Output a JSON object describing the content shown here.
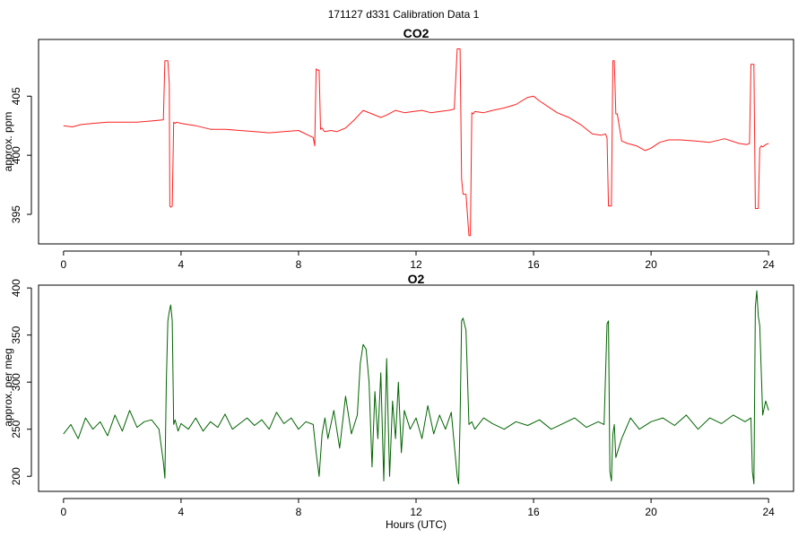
{
  "figure": {
    "title": "171127  d331   Calibration Data 1",
    "xlabel": "Hours (UTC)"
  },
  "colors": {
    "co2": "#ff2020",
    "o2": "#006400",
    "axis": "#000000"
  },
  "chart_data": [
    {
      "type": "line",
      "title": "CO2",
      "xlabel": "",
      "ylabel": "approx. ppm",
      "xlim": [
        -0.85,
        24.85
      ],
      "ylim": [
        392.5,
        409.8
      ],
      "xticks": [
        0,
        4,
        8,
        12,
        16,
        20,
        24
      ],
      "yticks": [
        395,
        400,
        405
      ],
      "grid": false,
      "series": [
        {
          "color": "#ff2020",
          "x": [
            0.0,
            0.3,
            0.6,
            1.0,
            1.5,
            2.0,
            2.5,
            3.0,
            3.4,
            3.45,
            3.5,
            3.55,
            3.6,
            3.62,
            3.65,
            3.7,
            3.75,
            3.8,
            3.85,
            4.0,
            4.5,
            5.0,
            5.5,
            6.0,
            6.5,
            7.0,
            7.5,
            8.0,
            8.5,
            8.55,
            8.6,
            8.65,
            8.7,
            8.75,
            8.8,
            8.85,
            8.9,
            9.1,
            9.3,
            9.6,
            9.9,
            10.2,
            10.5,
            10.8,
            11.0,
            11.3,
            11.6,
            11.9,
            12.2,
            12.5,
            12.8,
            13.1,
            13.3,
            13.4,
            13.45,
            13.5,
            13.55,
            13.6,
            13.65,
            13.7,
            13.8,
            13.85,
            13.9,
            13.95,
            14.0,
            14.3,
            14.6,
            15.0,
            15.4,
            15.8,
            16.0,
            16.2,
            16.5,
            16.8,
            17.2,
            17.6,
            18.0,
            18.3,
            18.45,
            18.5,
            18.55,
            18.6,
            18.65,
            18.7,
            18.75,
            18.8,
            18.85,
            19.0,
            19.2,
            19.5,
            19.8,
            20.0,
            20.3,
            20.6,
            21.0,
            21.5,
            22.0,
            22.5,
            23.0,
            23.25,
            23.35,
            23.4,
            23.45,
            23.5,
            23.55,
            23.6,
            23.65,
            23.7,
            23.75,
            23.8,
            23.9,
            24.0
          ],
          "y": [
            402.5,
            402.4,
            402.6,
            402.7,
            402.8,
            402.8,
            402.8,
            402.9,
            403.0,
            408.0,
            408.0,
            408.0,
            406.0,
            395.7,
            395.6,
            395.7,
            402.8,
            402.7,
            402.8,
            402.7,
            402.5,
            402.2,
            402.2,
            402.1,
            402.0,
            401.9,
            402.0,
            402.1,
            401.5,
            400.8,
            407.3,
            407.2,
            407.2,
            402.2,
            402.3,
            402.1,
            402.0,
            402.1,
            402.0,
            402.3,
            403.0,
            403.8,
            403.5,
            403.2,
            403.4,
            403.8,
            403.6,
            403.7,
            403.8,
            403.6,
            403.7,
            403.8,
            403.9,
            409.0,
            409.0,
            409.0,
            398.0,
            396.7,
            396.7,
            396.7,
            393.2,
            393.2,
            403.6,
            403.5,
            403.7,
            403.6,
            403.8,
            404.0,
            404.3,
            404.9,
            405.0,
            404.6,
            404.1,
            403.6,
            403.2,
            402.6,
            401.8,
            401.7,
            401.8,
            401.5,
            395.7,
            395.7,
            395.7,
            408.0,
            408.0,
            403.5,
            403.5,
            401.2,
            401.0,
            400.8,
            400.4,
            400.6,
            401.1,
            401.3,
            401.3,
            401.2,
            401.1,
            401.4,
            401.0,
            400.9,
            401.0,
            407.7,
            407.7,
            407.7,
            395.5,
            395.5,
            395.5,
            400.6,
            400.8,
            400.7,
            400.9,
            401.0
          ]
        }
      ]
    },
    {
      "type": "line",
      "title": "O2",
      "xlabel": "Hours (UTC)",
      "ylabel": "approx. per meg",
      "xlim": [
        -0.85,
        24.85
      ],
      "ylim": [
        184,
        403
      ],
      "xticks": [
        0,
        4,
        8,
        12,
        16,
        20,
        24
      ],
      "yticks": [
        200,
        250,
        300,
        350,
        400
      ],
      "grid": false,
      "series": [
        {
          "color": "#006400",
          "x": [
            0.0,
            0.25,
            0.5,
            0.75,
            1.0,
            1.25,
            1.5,
            1.75,
            2.0,
            2.25,
            2.5,
            2.75,
            3.0,
            3.25,
            3.4,
            3.45,
            3.5,
            3.55,
            3.6,
            3.65,
            3.7,
            3.75,
            3.8,
            3.9,
            4.0,
            4.25,
            4.5,
            4.75,
            5.0,
            5.25,
            5.5,
            5.75,
            6.0,
            6.25,
            6.5,
            6.75,
            7.0,
            7.25,
            7.5,
            7.75,
            8.0,
            8.25,
            8.5,
            8.6,
            8.7,
            8.8,
            8.9,
            9.0,
            9.2,
            9.4,
            9.6,
            9.8,
            10.0,
            10.1,
            10.2,
            10.3,
            10.4,
            10.5,
            10.6,
            10.7,
            10.8,
            10.9,
            11.0,
            11.1,
            11.2,
            11.3,
            11.4,
            11.5,
            11.6,
            11.8,
            12.0,
            12.2,
            12.4,
            12.6,
            12.8,
            13.0,
            13.2,
            13.4,
            13.45,
            13.5,
            13.55,
            13.6,
            13.7,
            13.8,
            13.9,
            14.0,
            14.3,
            14.6,
            15.0,
            15.4,
            15.8,
            16.2,
            16.6,
            17.0,
            17.4,
            17.8,
            18.2,
            18.4,
            18.5,
            18.55,
            18.6,
            18.65,
            18.7,
            18.75,
            18.8,
            19.0,
            19.3,
            19.6,
            20.0,
            20.4,
            20.8,
            21.2,
            21.6,
            22.0,
            22.4,
            22.8,
            23.2,
            23.4,
            23.45,
            23.5,
            23.55,
            23.6,
            23.65,
            23.7,
            23.8,
            23.9,
            24.0
          ],
          "y": [
            245,
            255,
            240,
            262,
            250,
            258,
            243,
            265,
            248,
            270,
            252,
            258,
            260,
            250,
            215,
            198,
            300,
            365,
            375,
            382,
            365,
            255,
            260,
            248,
            256,
            250,
            262,
            248,
            258,
            252,
            266,
            250,
            256,
            262,
            254,
            260,
            250,
            268,
            256,
            262,
            250,
            258,
            255,
            225,
            200,
            245,
            262,
            240,
            270,
            230,
            285,
            245,
            265,
            320,
            340,
            335,
            300,
            210,
            290,
            240,
            310,
            195,
            325,
            200,
            280,
            240,
            300,
            225,
            270,
            250,
            262,
            240,
            275,
            245,
            265,
            250,
            268,
            200,
            192,
            260,
            365,
            368,
            355,
            255,
            258,
            250,
            262,
            256,
            250,
            258,
            254,
            260,
            250,
            256,
            262,
            252,
            258,
            255,
            362,
            365,
            205,
            195,
            245,
            255,
            220,
            240,
            262,
            250,
            258,
            262,
            254,
            265,
            250,
            262,
            256,
            265,
            258,
            262,
            205,
            192,
            380,
            397,
            370,
            360,
            265,
            280,
            270
          ]
        }
      ]
    }
  ]
}
